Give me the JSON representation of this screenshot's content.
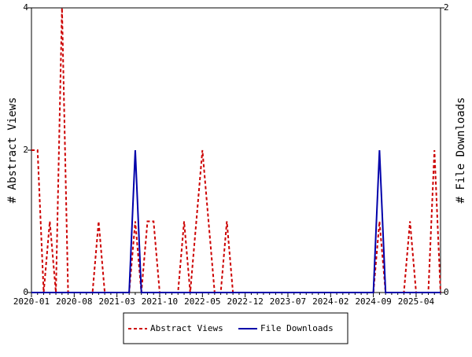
{
  "chart_data": {
    "type": "line",
    "categories": [
      "2020-01",
      null,
      null,
      null,
      null,
      null,
      null,
      "2020-08",
      null,
      null,
      null,
      null,
      null,
      null,
      "2021-03",
      null,
      null,
      null,
      null,
      null,
      null,
      "2021-10",
      null,
      null,
      null,
      null,
      null,
      null,
      "2022-05",
      null,
      null,
      null,
      null,
      null,
      null,
      "2022-12",
      null,
      null,
      null,
      null,
      null,
      null,
      "2023-07",
      null,
      null,
      null,
      null,
      null,
      null,
      "2024-02",
      null,
      null,
      null,
      null,
      null,
      null,
      "2024-09",
      null,
      null,
      null,
      null,
      null,
      null,
      "2025-04",
      null,
      null,
      null,
      null
    ],
    "series": [
      {
        "name": "Abstract Views",
        "color": "#cc0000",
        "dashed": true,
        "values": [
          2,
          2,
          0,
          1,
          0,
          4,
          0,
          0,
          0,
          0,
          0,
          1,
          0,
          0,
          0,
          0,
          0,
          1,
          0,
          1,
          1,
          0,
          0,
          0,
          0,
          1,
          0,
          1,
          2,
          1,
          0,
          0,
          1,
          0,
          0,
          0,
          0,
          0,
          0,
          0,
          0,
          0,
          0,
          0,
          0,
          0,
          0,
          0,
          0,
          0,
          0,
          0,
          0,
          0,
          0,
          0,
          0,
          1,
          0,
          0,
          0,
          0,
          1,
          0,
          0,
          0,
          2,
          0
        ]
      },
      {
        "name": "File Downloads",
        "color": "#0000aa",
        "axis": "y2",
        "dashed": false,
        "values": [
          0,
          0,
          0,
          0,
          0,
          0,
          0,
          0,
          0,
          0,
          0,
          0,
          0,
          0,
          0,
          0,
          0,
          1,
          0,
          0,
          0,
          0,
          0,
          0,
          0,
          0,
          0,
          0,
          0,
          0,
          0,
          0,
          0,
          0,
          0,
          0,
          0,
          0,
          0,
          0,
          0,
          0,
          0,
          0,
          0,
          0,
          0,
          0,
          0,
          0,
          0,
          0,
          0,
          0,
          0,
          0,
          0,
          1,
          0,
          0,
          0,
          0,
          0,
          0,
          0,
          0,
          0,
          0
        ]
      }
    ],
    "y_label": "# Abstract Views",
    "y2_label": "# File Downloads",
    "ylim": [
      0,
      4
    ],
    "yticks": [
      0,
      2,
      4
    ],
    "y2lim": [
      0,
      2
    ],
    "y2ticks": [
      0,
      2
    ],
    "grid": false,
    "legend": "bottom"
  }
}
